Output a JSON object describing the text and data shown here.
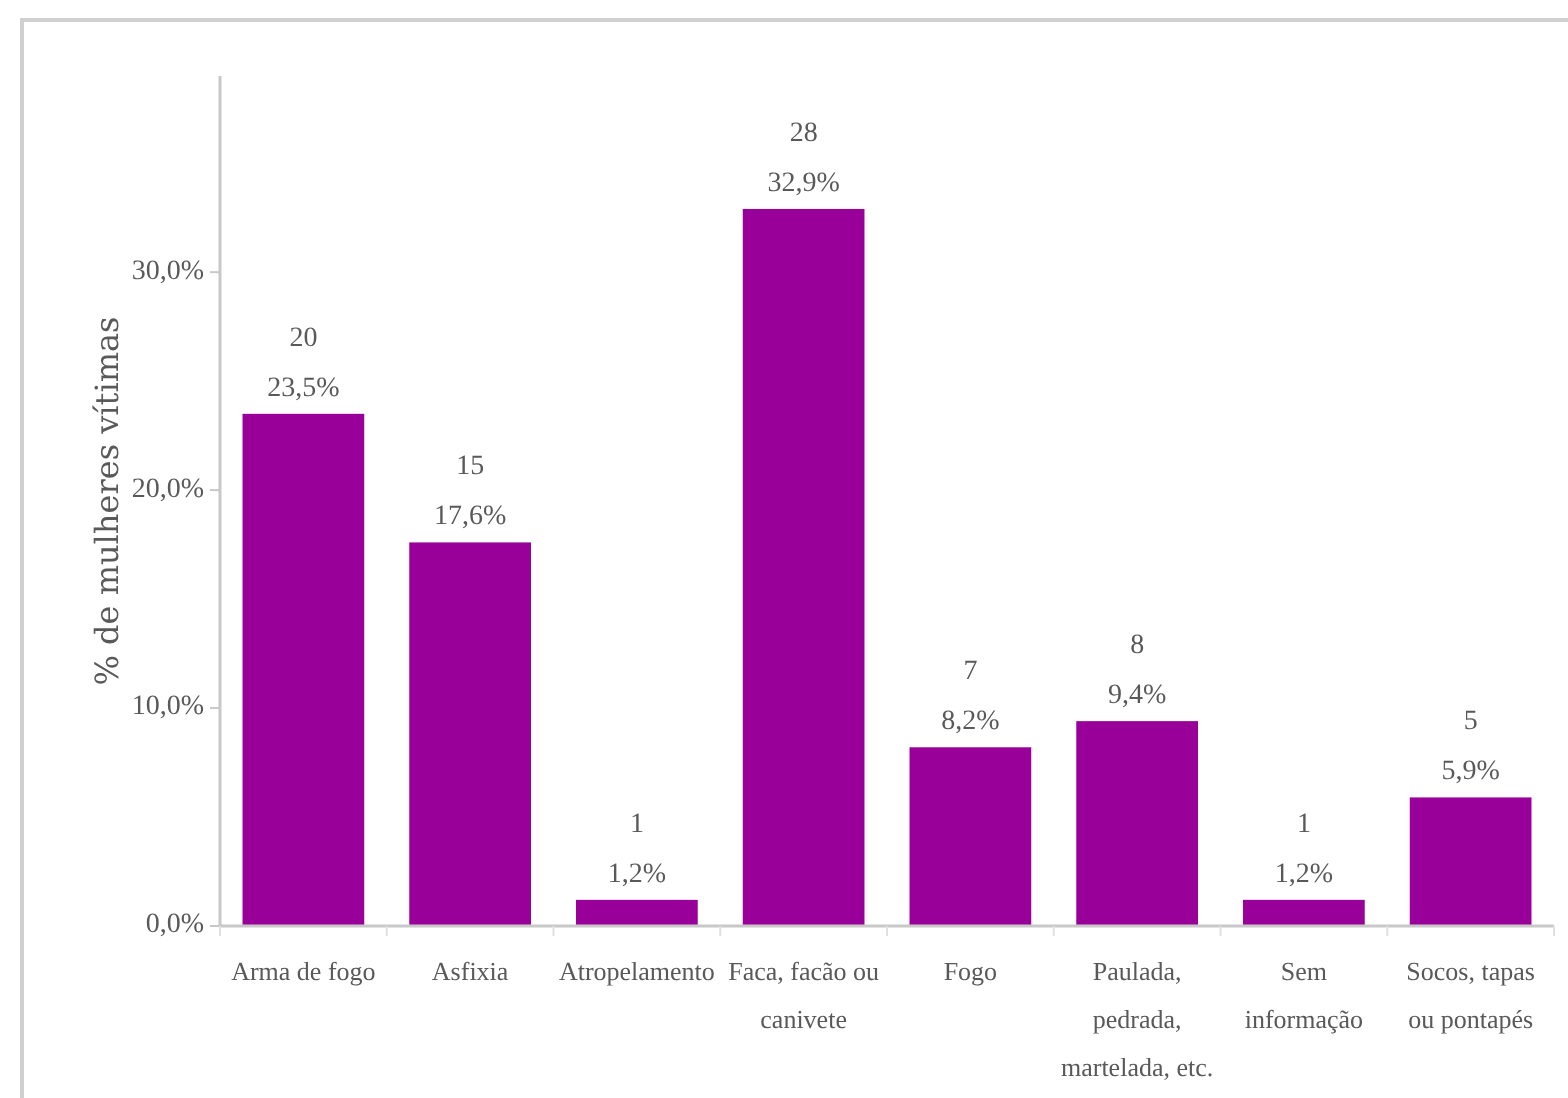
{
  "chart_data": {
    "type": "bar",
    "ylabel": "% de mulheres vítimas",
    "categories": [
      "Arma de fogo",
      "Asfixia",
      "Atropelamento",
      "Faca, facão ou canivete",
      "Fogo",
      "Paulada, pedrada, martelada, etc.",
      "Sem informação",
      "Socos, tapas ou pontapés"
    ],
    "values": [
      23.5,
      17.6,
      1.2,
      32.9,
      8.2,
      9.4,
      1.2,
      5.9
    ],
    "color": "#990099",
    "value_labels": [
      "20\n23,5%",
      "15\n17,6%",
      "1\n1,2%",
      "28\n32,9%",
      "7\n8,2%",
      "8\n9,4%",
      "1\n1,2%",
      "5\n5,9%"
    ],
    "ylim": [
      0,
      39
    ],
    "yticks": [
      {
        "value": 0,
        "label": "0,0%"
      },
      {
        "value": 10,
        "label": "10,0%"
      },
      {
        "value": 20,
        "label": "20,0%"
      },
      {
        "value": 30,
        "label": "30,0%"
      }
    ]
  }
}
